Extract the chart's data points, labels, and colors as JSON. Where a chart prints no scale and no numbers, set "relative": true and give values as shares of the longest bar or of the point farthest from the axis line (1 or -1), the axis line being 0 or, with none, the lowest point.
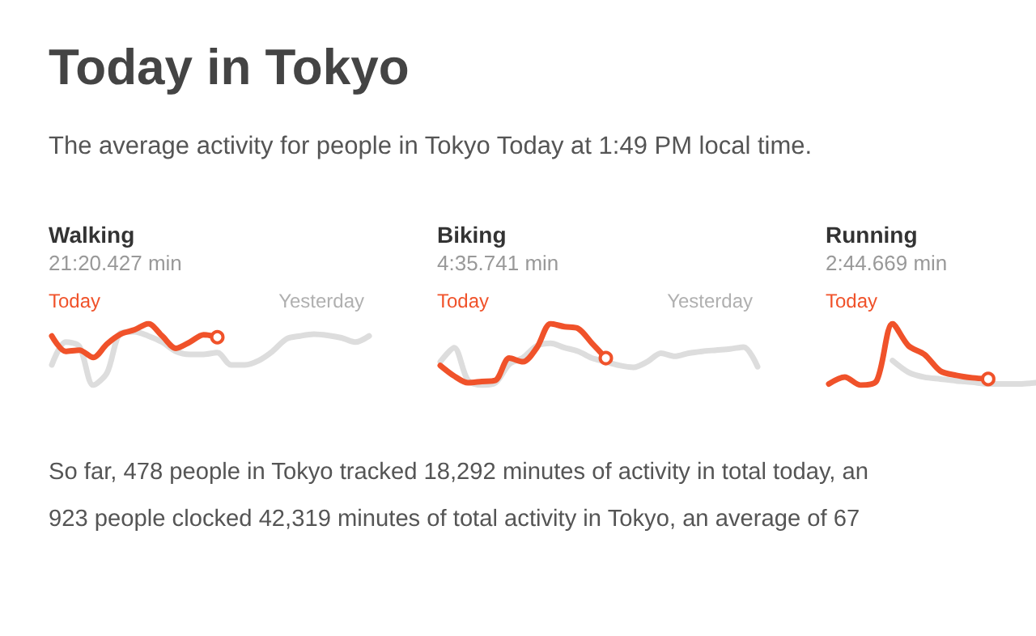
{
  "chart_data": [
    {
      "type": "other",
      "title": "Today in Tokyo",
      "subtitle": "The average activity for people in Tokyo Today at 1:49 PM local time."
    },
    {
      "type": "line",
      "title": "Walking",
      "subtitle": "21:20.427 min",
      "relative": true,
      "categories": [
        null,
        null,
        null,
        null,
        null,
        null,
        null,
        null,
        null,
        null,
        null,
        null,
        null,
        null,
        null,
        null,
        null,
        null,
        null,
        null,
        null,
        null,
        null,
        null
      ],
      "series": [
        {
          "name": "Yesterday",
          "color": "#dddddd",
          "values": [
            0.33,
            0.7,
            0.63,
            0,
            0.2,
            0.85,
            0.87,
            0.8,
            0.7,
            0.55,
            0.5,
            0.5,
            0.53,
            0.33,
            0.33,
            0.4,
            0.55,
            0.75,
            0.8,
            0.83,
            0.81,
            0.77,
            0.7,
            0.8
          ]
        },
        {
          "name": "Today",
          "color": "#f0522a",
          "values": [
            0.8,
            0.55,
            0.57,
            0.45,
            0.67,
            0.83,
            0.9,
            1,
            0.8,
            0.6,
            0.7,
            0.82,
            0.78,
            null,
            null,
            null,
            null,
            null,
            null,
            null,
            null,
            null,
            null,
            null
          ]
        }
      ]
    },
    {
      "type": "line",
      "title": "Biking",
      "subtitle": "4:35.741 min",
      "relative": true,
      "categories": [
        null,
        null,
        null,
        null,
        null,
        null,
        null,
        null,
        null,
        null,
        null,
        null,
        null,
        null,
        null,
        null,
        null,
        null,
        null,
        null,
        null,
        null,
        null,
        null
      ],
      "series": [
        {
          "name": "Yesterday",
          "color": "#dddddd",
          "values": [
            0.38,
            0.61,
            0.08,
            0,
            0.04,
            0.34,
            0.45,
            0.64,
            0.68,
            0.61,
            0.55,
            0.44,
            0.38,
            0.32,
            0.29,
            0.38,
            0.52,
            0.47,
            0.52,
            0.55,
            0.57,
            0.59,
            0.62,
            0.3
          ]
        },
        {
          "name": "Today",
          "color": "#f0522a",
          "values": [
            0.32,
            0.15,
            0.04,
            0.06,
            0.08,
            0.44,
            0.38,
            0.61,
            1,
            0.95,
            0.92,
            0.68,
            0.44,
            null,
            null,
            null,
            null,
            null,
            null,
            null,
            null,
            null,
            null,
            null
          ]
        }
      ]
    },
    {
      "type": "line",
      "title": "Running",
      "subtitle": "2:44.669 min",
      "relative": true,
      "categories": [
        null,
        null,
        null,
        null,
        null,
        null,
        null,
        null,
        null,
        null,
        null,
        null,
        null,
        null
      ],
      "series": [
        {
          "color": "#dddddd",
          "values": [
            null,
            null,
            null,
            null,
            0.4,
            0.21,
            0.13,
            0.1,
            0.07,
            0.05,
            0.02,
            0.02,
            0.02,
            0.04
          ]
        },
        {
          "name": "Today",
          "color": "#f0522a",
          "values": [
            0.02,
            0.13,
            0,
            0.07,
            1,
            0.64,
            0.5,
            0.23,
            0.16,
            0.12,
            0.1,
            null,
            null,
            null
          ]
        }
      ]
    },
    {
      "type": "other",
      "annotations": [
        "So far, 478 people in Tokyo tracked 18,292 minutes of activity in total today, an",
        "923 people clocked 42,319 minutes of total activity in Tokyo, an average of 67"
      ]
    }
  ]
}
